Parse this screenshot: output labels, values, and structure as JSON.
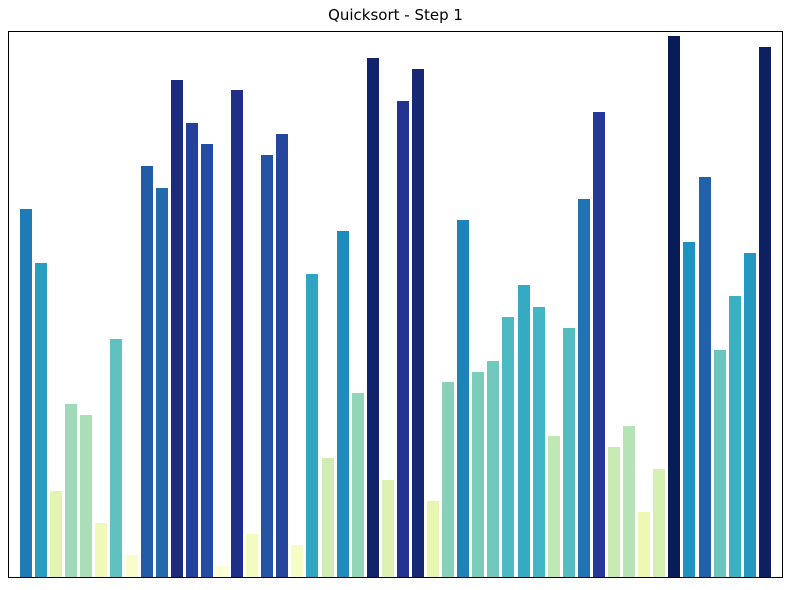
{
  "figure": {
    "title": "Quicksort - Step 1",
    "background_color": "#ffffff",
    "frame_color": "#000000"
  },
  "chart_data": {
    "type": "bar",
    "title": "Quicksort - Step 1",
    "xlabel": "",
    "ylabel": "",
    "n_bars": 50,
    "values": [
      34,
      29,
      8,
      16,
      15,
      5,
      22,
      2,
      38,
      36,
      46,
      42,
      40,
      1,
      45,
      4,
      39,
      41,
      3,
      28,
      11,
      32,
      17,
      48,
      9,
      44,
      47,
      7,
      18,
      33,
      19,
      20,
      24,
      27,
      25,
      13,
      23,
      35,
      43,
      12,
      14,
      6,
      10,
      50,
      31,
      37,
      21,
      26,
      30,
      49
    ],
    "bar_colors": [
      "#1f7bb5",
      "#2a9ec1",
      "#e2f4b2",
      "#9fd9b8",
      "#aadeb7",
      "#f1f9b9",
      "#5fc1c0",
      "#f9fdcc",
      "#225ba6",
      "#216aae",
      "#1b2c7e",
      "#24409a",
      "#234da0",
      "#fcfed3",
      "#1f2f88",
      "#f3fbbf",
      "#2354a3",
      "#24469d",
      "#f6fcc6",
      "#30a4c2",
      "#d0edb3",
      "#1e8bbd",
      "#93d5b9",
      "#11246b",
      "#dcf1b2",
      "#243392",
      "#162875",
      "#e8f6b1",
      "#88d0ba",
      "#1e83b9",
      "#7cccbb",
      "#73c8bd",
      "#4bbac3",
      "#35aac3",
      "#41b6c4",
      "#c1e7b5",
      "#55bdc1",
      "#2072b2",
      "#253996",
      "#caeab4",
      "#b6e2b6",
      "#eef8b3",
      "#d6efb3",
      "#081d58",
      "#1e92c0",
      "#2262aa",
      "#69c5be",
      "#3bb0c3",
      "#2498c1",
      "#0d2162"
    ],
    "colormap": "YlGnBu",
    "color_mapping": "value / 50",
    "ylim": [
      0,
      50.4
    ],
    "xticks": "none",
    "yticks": "none",
    "grid": false,
    "legend": false,
    "frame": true
  }
}
